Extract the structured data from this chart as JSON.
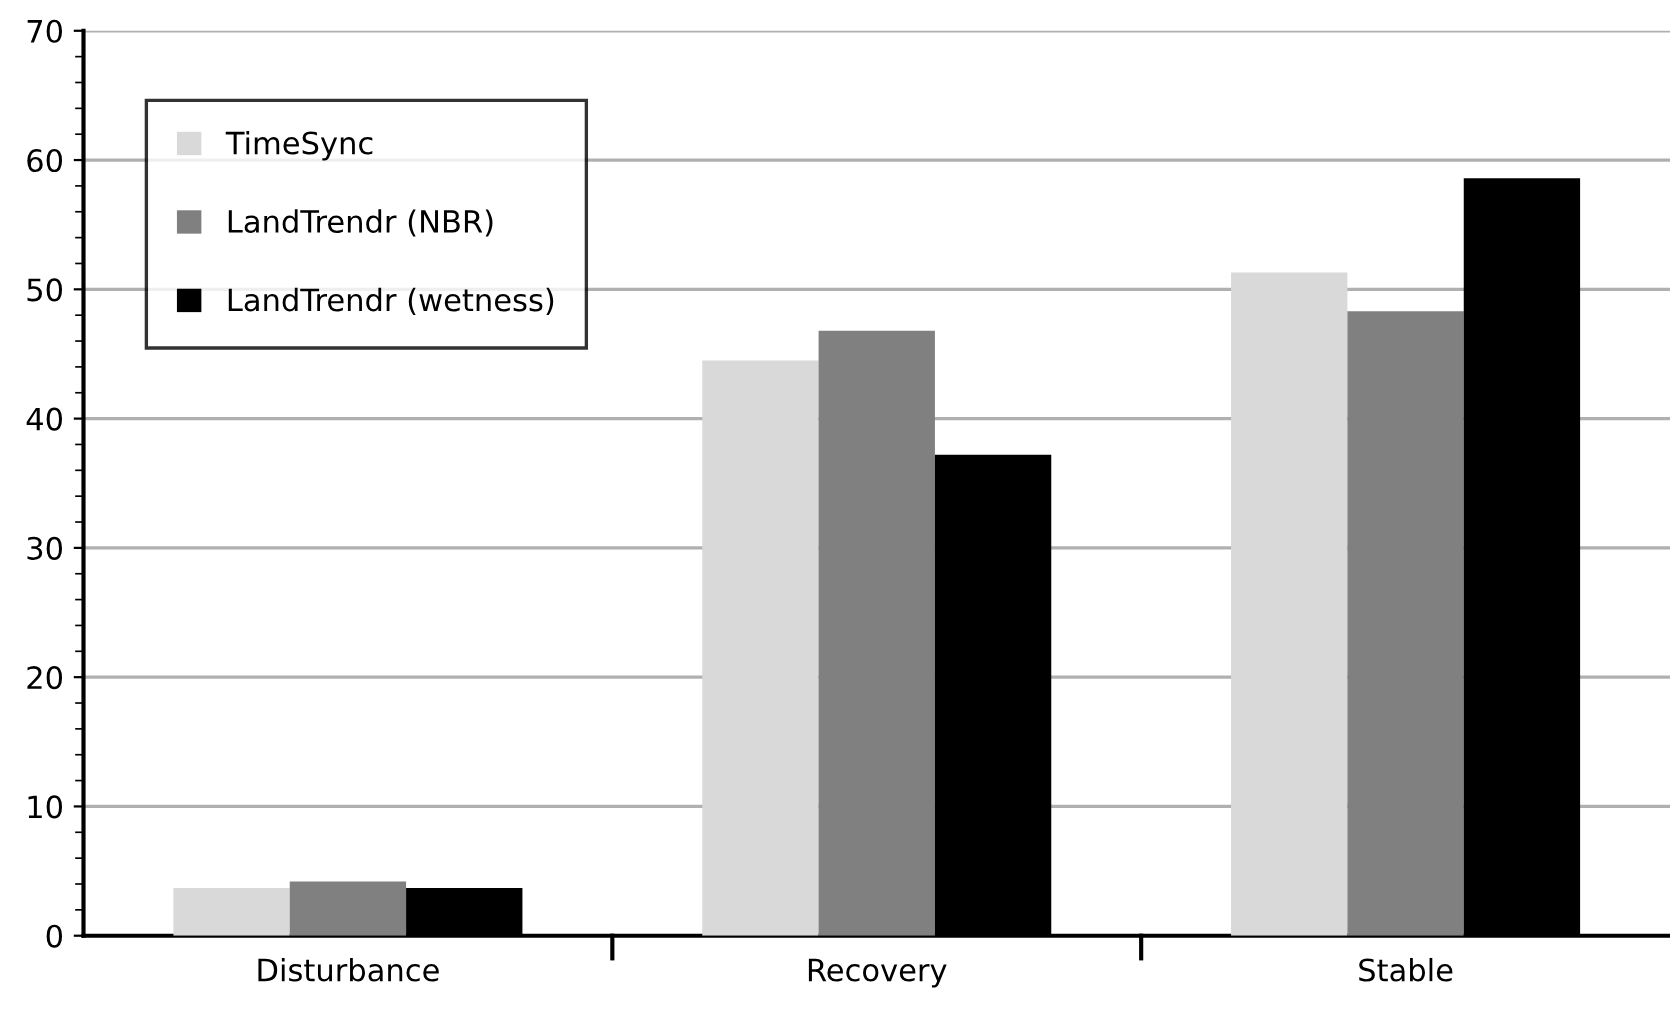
{
  "chart_data": {
    "type": "bar",
    "categories": [
      "Disturbance",
      "Recovery",
      "Stable"
    ],
    "series": [
      {
        "name": "TimeSync",
        "color": "#d9d9d9",
        "values": [
          3.7,
          44.5,
          51.3
        ]
      },
      {
        "name": "LandTrendr (NBR)",
        "color": "#808080",
        "values": [
          4.2,
          46.8,
          48.3
        ]
      },
      {
        "name": "LandTrendr (wetness)",
        "color": "#000000",
        "values": [
          3.7,
          37.2,
          58.6
        ]
      }
    ],
    "ylim": [
      0,
      70
    ],
    "yticks": [
      0,
      10,
      20,
      30,
      40,
      50,
      60,
      70
    ],
    "grid": "y",
    "legend": "top left"
  }
}
